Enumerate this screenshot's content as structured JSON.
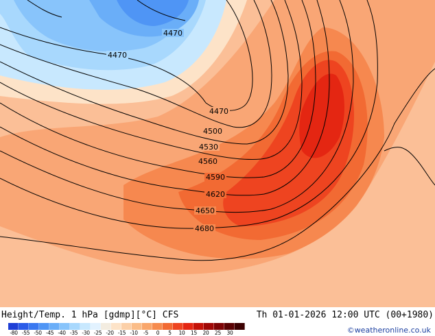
{
  "header": {
    "title": "Height/Temp. 1 hPa [gdmp][°C] CFS",
    "valid_time": "Th 01-01-2026 12:00 UTC (00+1980)"
  },
  "credit": "©weatheronline.co.uk",
  "contour_labels": [
    "4470",
    "4470",
    "4470",
    "4500",
    "4530",
    "4560",
    "4590",
    "4620",
    "4650",
    "4680"
  ],
  "legend": {
    "ticks": [
      "-80",
      "-55",
      "-50",
      "-45",
      "-40",
      "-35",
      "-30",
      "-25",
      "-20",
      "-15",
      "-10",
      "-5",
      "0",
      "5",
      "10",
      "15",
      "20",
      "25",
      "30"
    ],
    "colors": [
      "#1e3fd6",
      "#2a5be8",
      "#3a78f0",
      "#4f95f5",
      "#6aaef8",
      "#88c4fb",
      "#a8d8fd",
      "#c8e8fe",
      "#e2f2ff",
      "#f3ece0",
      "#fde3c8",
      "#fcd0a8",
      "#fbbd88",
      "#f9a66b",
      "#f68b4e",
      "#f26a33",
      "#ee4420",
      "#e42612",
      "#c41208",
      "#a00806",
      "#7d0405",
      "#5a0203",
      "#3c0102"
    ]
  }
}
